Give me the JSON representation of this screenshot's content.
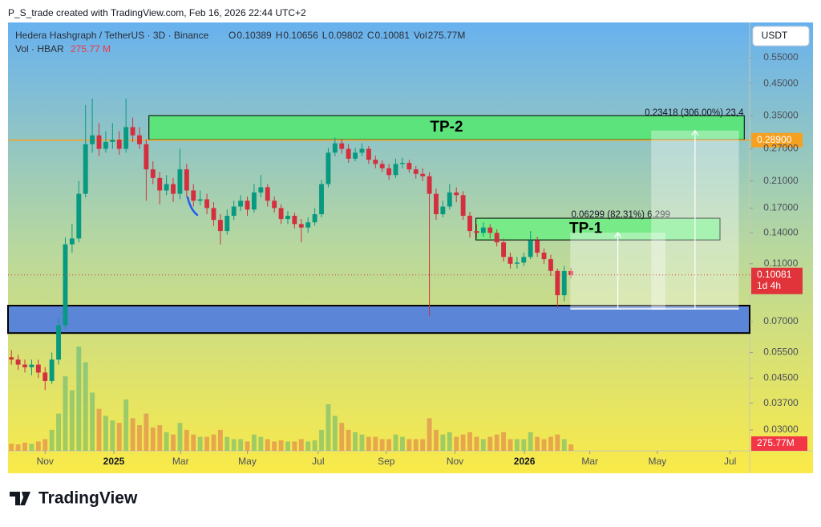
{
  "chart_data": {
    "type": "candlestick",
    "title": "P_S_trade created with TradingView.com, Feb 16, 2026 22:44 UTC+2",
    "legend": {
      "symbol": "Hedera Hashgraph / TetherUS · 3D · Binance",
      "ohlc": [
        {
          "key": "O",
          "value": 0.10389
        },
        {
          "key": "H",
          "value": 0.10656
        },
        {
          "key": "L",
          "value": 0.09802
        },
        {
          "key": "C",
          "value": 0.10081
        }
      ],
      "vol_key": "Vol",
      "vol_value": {
        "value": 275.77,
        "label": "275.77M"
      },
      "vol_symbol": "Vol · HBAR",
      "vol_symbol_value": {
        "value": 275.77,
        "label": "275.77 M"
      }
    },
    "currency": "USDT",
    "log_scale": true,
    "ylim": [
      0.0255,
      0.725
    ],
    "yticks": [
      {
        "value": 0.55,
        "label": "0.55000"
      },
      {
        "value": 0.45,
        "label": "0.45000"
      },
      {
        "value": 0.35,
        "label": "0.35000"
      },
      {
        "value": 0.27,
        "label": "0.27000"
      },
      {
        "value": 0.21,
        "label": "0.21000"
      },
      {
        "value": 0.17,
        "label": "0.17000"
      },
      {
        "value": 0.14,
        "label": "0.14000"
      },
      {
        "value": 0.11,
        "label": "0.11000"
      },
      {
        "value": 0.07,
        "label": "0.07000"
      },
      {
        "value": 0.055,
        "label": "0.05500"
      },
      {
        "value": 0.045,
        "label": "0.04500"
      },
      {
        "value": 0.037,
        "label": "0.03700"
      },
      {
        "value": 0.03,
        "label": "0.03000"
      }
    ],
    "xlim": [
      0,
      110
    ],
    "xticks": [
      {
        "value": 5.5,
        "label": "Nov"
      },
      {
        "value": 15.7,
        "label": "2025"
      },
      {
        "value": 25.6,
        "label": "Mar"
      },
      {
        "value": 35.5,
        "label": "May"
      },
      {
        "value": 46,
        "label": "Jul"
      },
      {
        "value": 56.1,
        "label": "Sep"
      },
      {
        "value": 66.3,
        "label": "Nov"
      },
      {
        "value": 76.6,
        "label": "2026"
      },
      {
        "value": 86.3,
        "label": "Mar"
      },
      {
        "value": 96.3,
        "label": "May"
      },
      {
        "value": 107.1,
        "label": "Jul"
      }
    ],
    "up_color": "#089981",
    "down_color": "#d32f3f",
    "candles": {
      "open": [
        0.053,
        0.052,
        0.05,
        0.049,
        0.05,
        0.047,
        0.044,
        0.052,
        0.068,
        0.128,
        0.134,
        0.19,
        0.28,
        0.3,
        0.27,
        0.285,
        0.29,
        0.27,
        0.32,
        0.3,
        0.28,
        0.23,
        0.215,
        0.195,
        0.205,
        0.19,
        0.23,
        0.195,
        0.18,
        0.182,
        0.17,
        0.155,
        0.142,
        0.16,
        0.172,
        0.18,
        0.168,
        0.192,
        0.2,
        0.18,
        0.17,
        0.156,
        0.16,
        0.15,
        0.146,
        0.152,
        0.162,
        0.205,
        0.262,
        0.282,
        0.27,
        0.25,
        0.262,
        0.27,
        0.248,
        0.24,
        0.232,
        0.22,
        0.24,
        0.242,
        0.23,
        0.222,
        0.218,
        0.19,
        0.162,
        0.172,
        0.192,
        0.188,
        0.16,
        0.142,
        0.14,
        0.146,
        0.14,
        0.13,
        0.116,
        0.11,
        0.111,
        0.116,
        0.132,
        0.12,
        0.114,
        0.104,
        0.086,
        0.10389
      ],
      "high": [
        0.056,
        0.054,
        0.052,
        0.052,
        0.052,
        0.049,
        0.055,
        0.072,
        0.135,
        0.15,
        0.21,
        0.38,
        0.4,
        0.33,
        0.31,
        0.33,
        0.31,
        0.4,
        0.345,
        0.32,
        0.29,
        0.245,
        0.225,
        0.22,
        0.215,
        0.27,
        0.24,
        0.205,
        0.195,
        0.19,
        0.178,
        0.162,
        0.168,
        0.18,
        0.188,
        0.186,
        0.205,
        0.22,
        0.205,
        0.186,
        0.175,
        0.166,
        0.164,
        0.156,
        0.158,
        0.17,
        0.212,
        0.272,
        0.295,
        0.292,
        0.28,
        0.272,
        0.282,
        0.276,
        0.256,
        0.247,
        0.24,
        0.25,
        0.252,
        0.248,
        0.236,
        0.232,
        0.225,
        0.198,
        0.18,
        0.205,
        0.2,
        0.194,
        0.165,
        0.15,
        0.152,
        0.15,
        0.144,
        0.134,
        0.12,
        0.116,
        0.12,
        0.142,
        0.136,
        0.124,
        0.118,
        0.106,
        0.108,
        0.10656
      ],
      "low": [
        0.05,
        0.048,
        0.047,
        0.046,
        0.045,
        0.041,
        0.043,
        0.05,
        0.066,
        0.12,
        0.13,
        0.185,
        0.262,
        0.255,
        0.262,
        0.27,
        0.258,
        0.262,
        0.285,
        0.27,
        0.18,
        0.205,
        0.175,
        0.188,
        0.178,
        0.182,
        0.185,
        0.172,
        0.174,
        0.162,
        0.148,
        0.128,
        0.138,
        0.155,
        0.166,
        0.16,
        0.164,
        0.185,
        0.172,
        0.164,
        0.15,
        0.15,
        0.145,
        0.13,
        0.14,
        0.148,
        0.158,
        0.2,
        0.255,
        0.26,
        0.242,
        0.245,
        0.255,
        0.24,
        0.232,
        0.225,
        0.212,
        0.215,
        0.232,
        0.224,
        0.214,
        0.21,
        0.073,
        0.155,
        0.158,
        0.168,
        0.178,
        0.155,
        0.135,
        0.134,
        0.136,
        0.134,
        0.126,
        0.112,
        0.106,
        0.106,
        0.108,
        0.114,
        0.116,
        0.11,
        0.1,
        0.078,
        0.082,
        0.09802
      ],
      "close": [
        0.052,
        0.05,
        0.049,
        0.05,
        0.047,
        0.044,
        0.052,
        0.068,
        0.128,
        0.134,
        0.19,
        0.28,
        0.3,
        0.27,
        0.285,
        0.29,
        0.27,
        0.32,
        0.3,
        0.28,
        0.23,
        0.215,
        0.195,
        0.205,
        0.19,
        0.23,
        0.195,
        0.18,
        0.182,
        0.17,
        0.155,
        0.142,
        0.16,
        0.172,
        0.18,
        0.168,
        0.192,
        0.2,
        0.18,
        0.17,
        0.156,
        0.16,
        0.15,
        0.146,
        0.152,
        0.162,
        0.205,
        0.262,
        0.282,
        0.27,
        0.25,
        0.262,
        0.27,
        0.248,
        0.24,
        0.232,
        0.22,
        0.24,
        0.242,
        0.23,
        0.222,
        0.218,
        0.19,
        0.162,
        0.172,
        0.192,
        0.188,
        0.16,
        0.142,
        0.14,
        0.146,
        0.14,
        0.13,
        0.116,
        0.11,
        0.111,
        0.116,
        0.132,
        0.12,
        0.114,
        0.104,
        0.086,
        0.10389,
        0.10081
      ]
    },
    "volume": {
      "vlim": [
        0,
        18400
      ],
      "values": [
        300,
        280,
        350,
        300,
        400,
        500,
        900,
        1600,
        3200,
        2600,
        4480,
        3800,
        2500,
        1800,
        1500,
        1300,
        1200,
        2200,
        1400,
        1100,
        1600,
        1000,
        1100,
        800,
        700,
        1200,
        900,
        700,
        600,
        600,
        700,
        900,
        600,
        500,
        500,
        400,
        700,
        600,
        500,
        400,
        450,
        400,
        400,
        500,
        400,
        450,
        900,
        2000,
        1500,
        1200,
        900,
        800,
        700,
        600,
        600,
        500,
        500,
        700,
        600,
        500,
        500,
        500,
        1400,
        900,
        700,
        800,
        600,
        700,
        800,
        600,
        500,
        600,
        700,
        800,
        500,
        500,
        500,
        800,
        600,
        500,
        600,
        700,
        500,
        275.77
      ]
    },
    "zones": [
      {
        "label": "TP-2",
        "from": 0.29,
        "to": 0.35,
        "x": [
          20.9,
          109.2
        ],
        "color": "#5de37b"
      },
      {
        "label": "TP-1",
        "from": 0.1325,
        "to": 0.157,
        "x": [
          69.4,
          105.6
        ],
        "color": "#78eb88"
      },
      {
        "from": 0.064,
        "to": 0.0793,
        "x": [
          0,
          110
        ],
        "color": "#5b86d8"
      }
    ],
    "measures": [
      {
        "label": "0.06299 (82.31%) 6,299",
        "from": 0.0773,
        "to": 0.1403,
        "x": [
          83.4,
          97.5
        ]
      },
      {
        "label": "0.23418 (306.00%) 23,4",
        "from": 0.0773,
        "to": 0.3115,
        "x": [
          95.4,
          108.4
        ]
      }
    ],
    "level_line": {
      "value": 0.289,
      "label": "0.28900",
      "color": "#f5a021"
    },
    "last_price": {
      "value": 0.10081,
      "label": "0.10081",
      "countdown": "1d 4h",
      "color": "#e0343a"
    },
    "footer": "TradingView"
  }
}
